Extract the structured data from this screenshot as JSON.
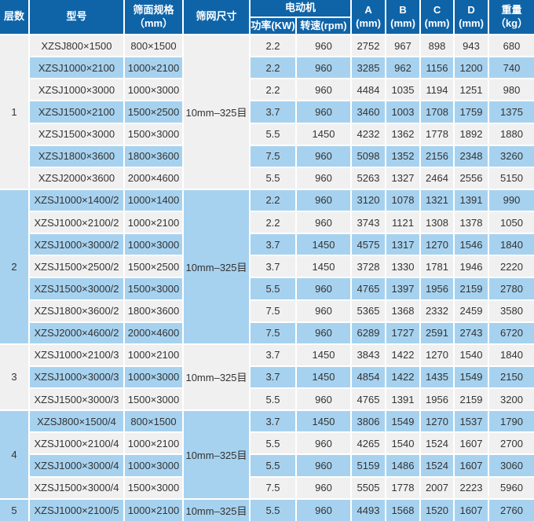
{
  "colors": {
    "header_bg": "#0f64a8",
    "header_text": "#ffffff",
    "stripe_light": "#f0f0f0",
    "stripe_blue": "#a7d2ef",
    "text": "#333333",
    "separator": "#ffffff"
  },
  "header": {
    "layers": "层数",
    "model": "型号",
    "screen_spec_line1": "筛面规格",
    "screen_spec_line2": "（mm）",
    "mesh": "筛网尺寸",
    "motor": "电动机",
    "power": "功率(KW)",
    "speed": "转速(rpm)",
    "col_a_line1": "A",
    "col_a_line2": "(mm)",
    "col_b_line1": "B",
    "col_b_line2": "(mm)",
    "col_c_line1": "C",
    "col_c_line2": "(mm)",
    "col_d_line1": "D",
    "col_d_line2": "(mm)",
    "weight_line1": "重量",
    "weight_line2": "（kg）"
  },
  "groups": [
    {
      "layer": "1",
      "mesh": "10mm–325目",
      "rows": [
        [
          "XZSJ800×1500",
          "800×1500",
          "2.2",
          "960",
          "2752",
          "967",
          "898",
          "943",
          "680"
        ],
        [
          "XZSJ1000×2100",
          "1000×2100",
          "2.2",
          "960",
          "3285",
          "962",
          "1156",
          "1200",
          "740"
        ],
        [
          "XZSJ1000×3000",
          "1000×3000",
          "2.2",
          "960",
          "4484",
          "1035",
          "1194",
          "1251",
          "980"
        ],
        [
          "XZSJ1500×2100",
          "1500×2500",
          "3.7",
          "960",
          "3460",
          "1003",
          "1708",
          "1759",
          "1375"
        ],
        [
          "XZSJ1500×3000",
          "1500×3000",
          "5.5",
          "1450",
          "4232",
          "1362",
          "1778",
          "1892",
          "1880"
        ],
        [
          "XZSJ1800×3600",
          "1800×3600",
          "7.5",
          "960",
          "5098",
          "1352",
          "2156",
          "2348",
          "3260"
        ],
        [
          "XZSJ2000×3600",
          "2000×4600",
          "5.5",
          "960",
          "5263",
          "1327",
          "2464",
          "2556",
          "5150"
        ]
      ]
    },
    {
      "layer": "2",
      "mesh": "10mm–325目",
      "rows": [
        [
          "XZSJ1000×1400/2",
          "1000×1400",
          "2.2",
          "960",
          "3120",
          "1078",
          "1321",
          "1391",
          "990"
        ],
        [
          "XZSJ1000×2100/2",
          "1000×2100",
          "2.2",
          "960",
          "3743",
          "1121",
          "1308",
          "1378",
          "1050"
        ],
        [
          "XZSJ1000×3000/2",
          "1000×3000",
          "3.7",
          "1450",
          "4575",
          "1317",
          "1270",
          "1546",
          "1840"
        ],
        [
          "XZSJ1500×2500/2",
          "1500×2500",
          "3.7",
          "1450",
          "3728",
          "1330",
          "1781",
          "1946",
          "2220"
        ],
        [
          "XZSJ1500×3000/2",
          "1500×3000",
          "5.5",
          "960",
          "4765",
          "1397",
          "1956",
          "2159",
          "2780"
        ],
        [
          "XZSJ1800×3600/2",
          "1800×3600",
          "7.5",
          "960",
          "5365",
          "1368",
          "2332",
          "2459",
          "3580"
        ],
        [
          "XZSJ2000×4600/2",
          "2000×4600",
          "7.5",
          "960",
          "6289",
          "1727",
          "2591",
          "2743",
          "6720"
        ]
      ]
    },
    {
      "layer": "3",
      "mesh": "10mm–325目",
      "rows": [
        [
          "XZSJ1000×2100/3",
          "1000×2100",
          "3.7",
          "1450",
          "3843",
          "1422",
          "1270",
          "1540",
          "1840"
        ],
        [
          "XZSJ1000×3000/3",
          "1000×3000",
          "3.7",
          "1450",
          "4854",
          "1422",
          "1435",
          "1549",
          "2150"
        ],
        [
          "XZSJ1500×3000/3",
          "1500×3000",
          "5.5",
          "960",
          "4765",
          "1391",
          "1956",
          "2159",
          "3200"
        ]
      ]
    },
    {
      "layer": "4",
      "mesh": "10mm–325目",
      "rows": [
        [
          "XZSJ800×1500/4",
          "800×1500",
          "3.7",
          "1450",
          "3806",
          "1549",
          "1270",
          "1537",
          "1790"
        ],
        [
          "XZSJ1000×2100/4",
          "1000×2100",
          "5.5",
          "960",
          "4265",
          "1540",
          "1524",
          "1607",
          "2700"
        ],
        [
          "XZSJ1000×3000/4",
          "1000×3000",
          "5.5",
          "960",
          "5159",
          "1486",
          "1524",
          "1607",
          "3060"
        ],
        [
          "XZSJ1500×3000/4",
          "1500×3000",
          "7.5",
          "960",
          "5505",
          "1778",
          "2007",
          "2223",
          "5960"
        ]
      ]
    },
    {
      "layer": "5",
      "mesh": "10mm–325目",
      "rows": [
        [
          "XZSJ1000×2100/5",
          "1000×2100",
          "5.5",
          "960",
          "4493",
          "1568",
          "1520",
          "1607",
          "2760"
        ]
      ]
    }
  ],
  "chart_data": {
    "type": "table",
    "columns": [
      "层数",
      "型号",
      "筛面规格（mm）",
      "筛网尺寸",
      "电动机 功率(KW)",
      "电动机 转速(rpm)",
      "A (mm)",
      "B (mm)",
      "C (mm)",
      "D (mm)",
      "重量（kg）"
    ],
    "rows": [
      [
        "1",
        "XZSJ800×1500",
        "800×1500",
        "10mm–325目",
        "2.2",
        "960",
        "2752",
        "967",
        "898",
        "943",
        "680"
      ],
      [
        "1",
        "XZSJ1000×2100",
        "1000×2100",
        "10mm–325目",
        "2.2",
        "960",
        "3285",
        "962",
        "1156",
        "1200",
        "740"
      ],
      [
        "1",
        "XZSJ1000×3000",
        "1000×3000",
        "10mm–325目",
        "2.2",
        "960",
        "4484",
        "1035",
        "1194",
        "1251",
        "980"
      ],
      [
        "1",
        "XZSJ1500×2100",
        "1500×2500",
        "10mm–325目",
        "3.7",
        "960",
        "3460",
        "1003",
        "1708",
        "1759",
        "1375"
      ],
      [
        "1",
        "XZSJ1500×3000",
        "1500×3000",
        "10mm–325目",
        "5.5",
        "1450",
        "4232",
        "1362",
        "1778",
        "1892",
        "1880"
      ],
      [
        "1",
        "XZSJ1800×3600",
        "1800×3600",
        "10mm–325目",
        "7.5",
        "960",
        "5098",
        "1352",
        "2156",
        "2348",
        "3260"
      ],
      [
        "1",
        "XZSJ2000×3600",
        "2000×4600",
        "10mm–325目",
        "5.5",
        "960",
        "5263",
        "1327",
        "2464",
        "2556",
        "5150"
      ],
      [
        "2",
        "XZSJ1000×1400/2",
        "1000×1400",
        "10mm–325目",
        "2.2",
        "960",
        "3120",
        "1078",
        "1321",
        "1391",
        "990"
      ],
      [
        "2",
        "XZSJ1000×2100/2",
        "1000×2100",
        "10mm–325目",
        "2.2",
        "960",
        "3743",
        "1121",
        "1308",
        "1378",
        "1050"
      ],
      [
        "2",
        "XZSJ1000×3000/2",
        "1000×3000",
        "10mm–325目",
        "3.7",
        "1450",
        "4575",
        "1317",
        "1270",
        "1546",
        "1840"
      ],
      [
        "2",
        "XZSJ1500×2500/2",
        "1500×2500",
        "10mm–325目",
        "3.7",
        "1450",
        "3728",
        "1330",
        "1781",
        "1946",
        "2220"
      ],
      [
        "2",
        "XZSJ1500×3000/2",
        "1500×3000",
        "10mm–325目",
        "5.5",
        "960",
        "4765",
        "1397",
        "1956",
        "2159",
        "2780"
      ],
      [
        "2",
        "XZSJ1800×3600/2",
        "1800×3600",
        "10mm–325目",
        "7.5",
        "960",
        "5365",
        "1368",
        "2332",
        "2459",
        "3580"
      ],
      [
        "2",
        "XZSJ2000×4600/2",
        "2000×4600",
        "10mm–325目",
        "7.5",
        "960",
        "6289",
        "1727",
        "2591",
        "2743",
        "6720"
      ],
      [
        "3",
        "XZSJ1000×2100/3",
        "1000×2100",
        "10mm–325目",
        "3.7",
        "1450",
        "3843",
        "1422",
        "1270",
        "1540",
        "1840"
      ],
      [
        "3",
        "XZSJ1000×3000/3",
        "1000×3000",
        "10mm–325目",
        "3.7",
        "1450",
        "4854",
        "1422",
        "1435",
        "1549",
        "2150"
      ],
      [
        "3",
        "XZSJ1500×3000/3",
        "1500×3000",
        "10mm–325目",
        "5.5",
        "960",
        "4765",
        "1391",
        "1956",
        "2159",
        "3200"
      ],
      [
        "4",
        "XZSJ800×1500/4",
        "800×1500",
        "10mm–325目",
        "3.7",
        "1450",
        "3806",
        "1549",
        "1270",
        "1537",
        "1790"
      ],
      [
        "4",
        "XZSJ1000×2100/4",
        "1000×2100",
        "10mm–325目",
        "5.5",
        "960",
        "4265",
        "1540",
        "1524",
        "1607",
        "2700"
      ],
      [
        "4",
        "XZSJ1000×3000/4",
        "1000×3000",
        "10mm–325目",
        "5.5",
        "960",
        "5159",
        "1486",
        "1524",
        "1607",
        "3060"
      ],
      [
        "4",
        "XZSJ1500×3000/4",
        "1500×3000",
        "10mm–325目",
        "7.5",
        "960",
        "5505",
        "1778",
        "2007",
        "2223",
        "5960"
      ],
      [
        "5",
        "XZSJ1000×2100/5",
        "1000×2100",
        "10mm–325目",
        "5.5",
        "960",
        "4493",
        "1568",
        "1520",
        "1607",
        "2760"
      ]
    ]
  }
}
